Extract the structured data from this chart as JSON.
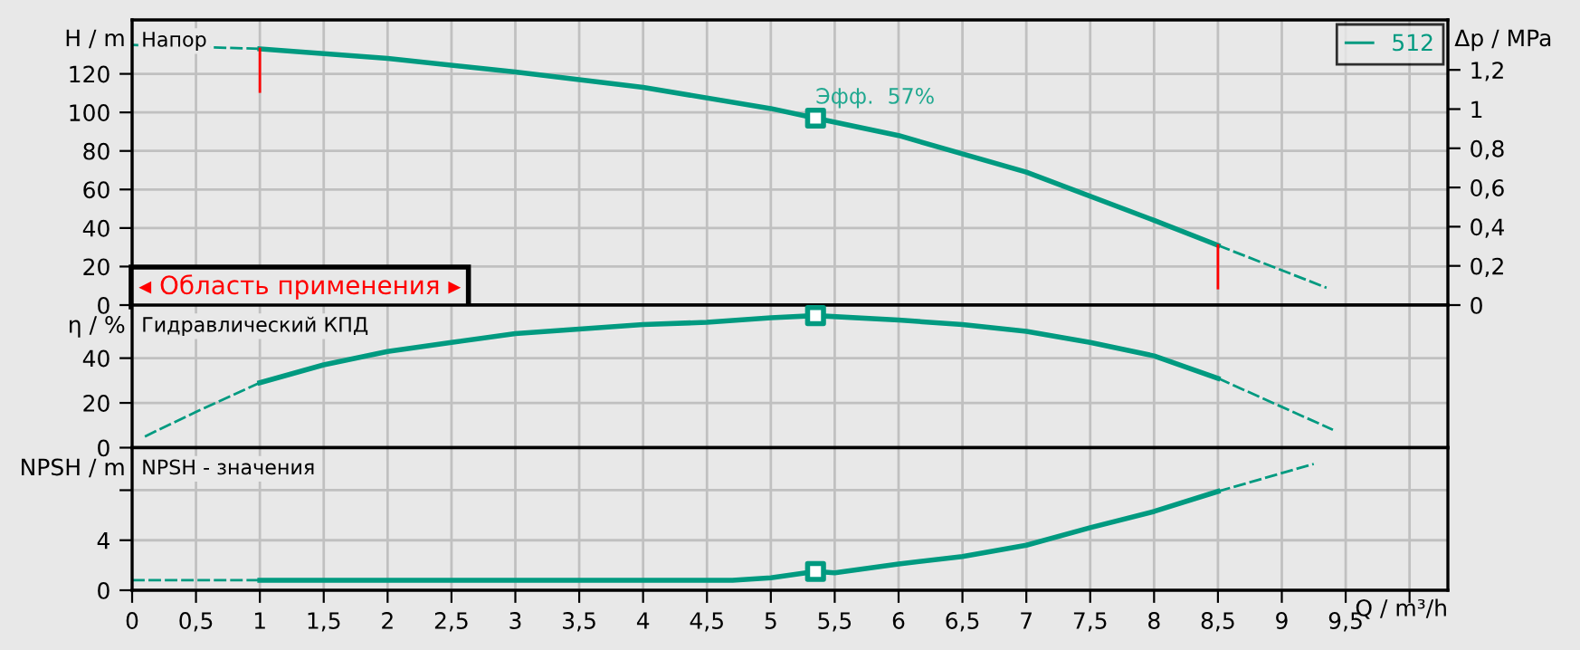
{
  "chart_data": [
    {
      "type": "line",
      "title": "Напор",
      "ylabel": "H / m",
      "y2label": "Δp / MPa",
      "xlim": [
        0,
        10.3
      ],
      "xticks": [
        {
          "value": 0,
          "label": null
        },
        {
          "value": 0.5,
          "label": null
        },
        {
          "value": 1,
          "label": null
        },
        {
          "value": 1.5,
          "label": null
        },
        {
          "value": 2,
          "label": null
        },
        {
          "value": 2.5,
          "label": null
        },
        {
          "value": 3,
          "label": null
        },
        {
          "value": 3.5,
          "label": null
        },
        {
          "value": 4,
          "label": null
        },
        {
          "value": 4.5,
          "label": null
        },
        {
          "value": 5,
          "label": null
        },
        {
          "value": 5.5,
          "label": null
        },
        {
          "value": 6,
          "label": null
        },
        {
          "value": 6.5,
          "label": null
        },
        {
          "value": 7,
          "label": null
        },
        {
          "value": 7.5,
          "label": null
        },
        {
          "value": 8,
          "label": null
        },
        {
          "value": 8.5,
          "label": null
        },
        {
          "value": 9,
          "label": null
        },
        {
          "value": 9.5,
          "label": null
        },
        {
          "value": 10,
          "label": null
        }
      ],
      "ylim": [
        0,
        148
      ],
      "yticks": [
        0,
        20,
        40,
        60,
        80,
        100,
        120
      ],
      "y2lim": [
        0,
        1.455
      ],
      "y2ticks": [
        0,
        {
          "value": 0.2,
          "label": "0,2"
        },
        {
          "value": 0.4,
          "label": "0,4"
        },
        {
          "value": 0.6,
          "label": "0,6"
        },
        {
          "value": 0.8,
          "label": "0,8"
        },
        1,
        {
          "value": 1.2,
          "label": "1,2"
        }
      ],
      "tick_labels": "y",
      "grid": true,
      "legend": "top right",
      "series": [
        {
          "x": [
            0,
            1
          ],
          "values": [
            135,
            133
          ],
          "color": "#009a80",
          "line_style": "dashed"
        },
        {
          "name": "512",
          "x": [
            1,
            2,
            3,
            4,
            5,
            5.35,
            6,
            7,
            8,
            8.5
          ],
          "values": [
            133,
            128,
            121,
            113,
            102,
            97,
            88,
            69,
            44,
            31
          ],
          "color": "#009a80",
          "line_style": "solid"
        },
        {
          "x": [
            8.5,
            9.35
          ],
          "values": [
            31,
            9
          ],
          "color": "#009a80",
          "line_style": "dashed"
        },
        {
          "type": "scatter",
          "x": [
            5.35
          ],
          "values": [
            97
          ],
          "color": "#009a80",
          "marker": "square"
        }
      ],
      "ref_lines": [
        {
          "axis": "x",
          "value": 1,
          "color": "#ff0000"
        },
        {
          "axis": "x",
          "value": 8.5,
          "color": "#ff0000"
        }
      ],
      "annotations": [
        "◂ Область применения ▸",
        {
          "text": "Эфф.  57%",
          "x": 5.35,
          "y": 97
        }
      ]
    },
    {
      "type": "line",
      "title": "Гидравлический КПД",
      "ylabel": "η / %",
      "xlim": [
        0,
        10.3
      ],
      "xticks": [
        {
          "value": 0,
          "label": null
        },
        {
          "value": 0.5,
          "label": null
        },
        {
          "value": 1,
          "label": null
        },
        {
          "value": 1.5,
          "label": null
        },
        {
          "value": 2,
          "label": null
        },
        {
          "value": 2.5,
          "label": null
        },
        {
          "value": 3,
          "label": null
        },
        {
          "value": 3.5,
          "label": null
        },
        {
          "value": 4,
          "label": null
        },
        {
          "value": 4.5,
          "label": null
        },
        {
          "value": 5,
          "label": null
        },
        {
          "value": 5.5,
          "label": null
        },
        {
          "value": 6,
          "label": null
        },
        {
          "value": 6.5,
          "label": null
        },
        {
          "value": 7,
          "label": null
        },
        {
          "value": 7.5,
          "label": null
        },
        {
          "value": 8,
          "label": null
        },
        {
          "value": 8.5,
          "label": null
        },
        {
          "value": 9,
          "label": null
        },
        {
          "value": 9.5,
          "label": null
        },
        {
          "value": 10,
          "label": null
        }
      ],
      "ylim": [
        0,
        63.7
      ],
      "yticks": [
        0,
        20,
        40
      ],
      "tick_labels": "y",
      "grid": true,
      "series": [
        {
          "x": [
            0.1,
            0.5,
            1
          ],
          "values": [
            5,
            16,
            29
          ],
          "color": "#009a80",
          "line_style": "dashed"
        },
        {
          "x": [
            1,
            1.5,
            2,
            2.5,
            3,
            3.5,
            4,
            4.5,
            5,
            5.35,
            6,
            6.5,
            7,
            7.5,
            8,
            8.5
          ],
          "values": [
            29,
            37,
            43,
            47,
            51,
            53,
            55,
            56,
            58,
            59,
            57,
            55,
            52,
            47,
            41,
            31
          ],
          "color": "#009a80",
          "line_style": "solid"
        },
        {
          "x": [
            8.5,
            9.4
          ],
          "values": [
            31,
            8
          ],
          "color": "#009a80",
          "line_style": "dashed"
        },
        {
          "type": "scatter",
          "x": [
            5.35
          ],
          "values": [
            59
          ],
          "color": "#009a80",
          "marker": "square"
        }
      ]
    },
    {
      "type": "line",
      "title": "NPSH - значения",
      "ylabel": "NPSH / m",
      "xlabel": "Q / m³/h",
      "xlim": [
        0,
        10.3
      ],
      "xticks": [
        0,
        {
          "value": 0.5,
          "label": "0,5"
        },
        1,
        {
          "value": 1.5,
          "label": "1,5"
        },
        2,
        {
          "value": 2.5,
          "label": "2,5"
        },
        3,
        {
          "value": 3.5,
          "label": "3,5"
        },
        4,
        {
          "value": 4.5,
          "label": "4,5"
        },
        5,
        {
          "value": 5.5,
          "label": "5,5"
        },
        6,
        {
          "value": 6.5,
          "label": "6,5"
        },
        7,
        {
          "value": 7.5,
          "label": "7,5"
        },
        8,
        {
          "value": 8.5,
          "label": "8,5"
        },
        9,
        {
          "value": 9.5,
          "label": "9,5"
        },
        {
          "value": 10,
          "label": null
        }
      ],
      "ylim": [
        0,
        11.4
      ],
      "yticks": [
        0,
        4,
        {
          "value": 8,
          "label": null
        }
      ],
      "grid": true,
      "series": [
        {
          "x": [
            0,
            1
          ],
          "values": [
            0.8,
            0.8
          ],
          "color": "#009a80",
          "line_style": "dashed"
        },
        {
          "x": [
            1,
            2,
            3,
            4,
            4.7,
            5,
            5.35,
            5.5,
            6,
            6.5,
            7,
            7.5,
            8,
            8.5
          ],
          "values": [
            0.8,
            0.8,
            0.8,
            0.8,
            0.8,
            1.0,
            1.5,
            1.4,
            2.1,
            2.7,
            3.6,
            5.0,
            6.3,
            7.9
          ],
          "color": "#009a80",
          "line_style": "solid"
        },
        {
          "x": [
            8.5,
            9.25
          ],
          "values": [
            7.9,
            10.1
          ],
          "color": "#009a80",
          "line_style": "dashed"
        },
        {
          "type": "scatter",
          "x": [
            5.35
          ],
          "values": [
            1.5
          ],
          "color": "#009a80",
          "marker": "square"
        }
      ]
    }
  ]
}
